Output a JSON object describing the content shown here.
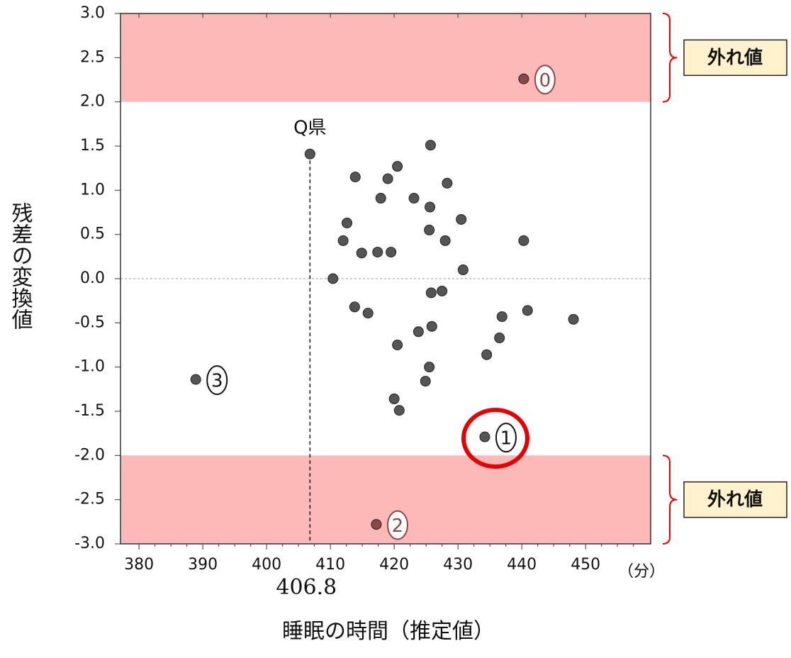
{
  "chart_data": {
    "type": "scatter",
    "x_label": "睡眠の時間（推定値）",
    "x_unit": "（分）",
    "y_label": "残差の変換値",
    "band_label": "外れ値",
    "xlim": [
      377.1,
      460.2
    ],
    "ylim": [
      -3,
      3
    ],
    "xticks": [
      380,
      390,
      400,
      410,
      420,
      430,
      440,
      450
    ],
    "yticks": [
      {
        "value": 3,
        "label": "3.0"
      },
      2.5,
      {
        "value": 2,
        "label": "2.0"
      },
      1.5,
      {
        "value": 1,
        "label": "1.0"
      },
      0.5,
      {
        "value": 0,
        "label": "0.0"
      },
      -0.5,
      {
        "value": -1,
        "label": "-1.0"
      },
      -1.5,
      {
        "value": -2,
        "label": "-2.0"
      },
      -2.5,
      {
        "value": -3,
        "label": "-3.0"
      }
    ],
    "bands": [
      [
        2,
        3
      ],
      [
        -3,
        -2
      ]
    ],
    "band_color": "#fdb8b8",
    "vline": 406.8,
    "hline": 0,
    "color": "#555555",
    "outlier_color": "#8a4848",
    "highlight": 3,
    "highlight_color": "#e60000",
    "x": [
      406.8,
      440.3,
      388.9,
      434.2,
      417.2,
      425.7,
      413.9,
      419.0,
      420.5,
      417.9,
      423.1,
      425.6,
      428.3,
      412.6,
      412.0,
      414.9,
      417.4,
      419.5,
      425.5,
      428.0,
      430.5,
      440.3,
      430.8,
      410.4,
      425.8,
      427.5,
      413.8,
      415.9,
      436.9,
      440.9,
      448.1,
      425.9,
      423.8,
      420.5,
      436.5,
      434.5,
      425.5,
      424.9,
      420.0,
      420.8
    ],
    "values": [
      1.41,
      2.26,
      -1.14,
      -1.79,
      -2.78,
      1.51,
      1.15,
      1.13,
      1.27,
      0.91,
      0.91,
      0.81,
      1.08,
      0.63,
      0.43,
      0.29,
      0.3,
      0.3,
      0.55,
      0.43,
      0.67,
      0.43,
      0.1,
      0.0,
      -0.16,
      -0.14,
      -0.32,
      -0.39,
      -0.43,
      -0.36,
      -0.46,
      -0.54,
      -0.6,
      -0.75,
      -0.67,
      -0.86,
      -1.0,
      -1.16,
      -1.36,
      -1.49
    ],
    "labels": [
      "Q県",
      "0",
      "3",
      "1",
      "2",
      null,
      null,
      null,
      null,
      null,
      null,
      null,
      null,
      null,
      null,
      null,
      null,
      null,
      null,
      null,
      null,
      null,
      null,
      null,
      null,
      null,
      null,
      null,
      null,
      null,
      null,
      null,
      null,
      null,
      null,
      null,
      null,
      null,
      null,
      null
    ]
  }
}
